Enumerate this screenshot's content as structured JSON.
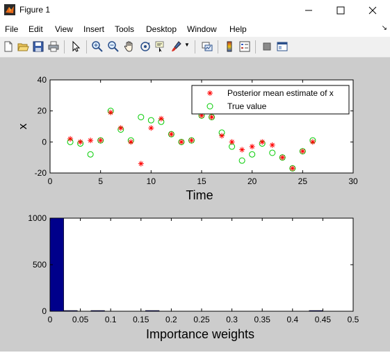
{
  "window": {
    "title": "Figure 1"
  },
  "menu": [
    "File",
    "Edit",
    "View",
    "Insert",
    "Tools",
    "Desktop",
    "Window",
    "Help"
  ],
  "toolbar": {
    "icons": [
      "new-figure-icon",
      "open-file-icon",
      "save-icon",
      "print-icon",
      "edit-plot-arrow-icon",
      "zoom-in-icon",
      "zoom-out-icon",
      "pan-hand-icon",
      "rotate-3d-icon",
      "data-cursor-icon",
      "brush-icon",
      "link-plot-icon",
      "colorbar-icon",
      "legend-icon",
      "hide-plot-tools-icon",
      "show-plot-tools-icon"
    ]
  },
  "plot1": {
    "ylabel": "x",
    "xlabel": "Time",
    "xlim": [
      0,
      30
    ],
    "ylim": [
      -20,
      40
    ],
    "xticks": [
      "0",
      "5",
      "10",
      "15",
      "20",
      "25",
      "30"
    ],
    "yticks": [
      "-20",
      "0",
      "20",
      "40"
    ],
    "legend": {
      "est_label": "Posterior mean estimate of x",
      "true_label": "True value",
      "placement": "top-right"
    }
  },
  "plot2": {
    "xlabel": "Importance weights",
    "xlim": [
      0,
      0.5
    ],
    "ylim": [
      0,
      1000
    ],
    "xticks": [
      "0",
      "0.05",
      "0.1",
      "0.15",
      "0.2",
      "0.25",
      "0.3",
      "0.35",
      "0.4",
      "0.45",
      "0.5"
    ],
    "yticks": [
      "0",
      "500",
      "1000"
    ]
  },
  "chart_data": [
    {
      "type": "scatter",
      "xlabel": "Time",
      "ylabel": "x",
      "xlim": [
        0,
        30
      ],
      "ylim": [
        -20,
        40
      ],
      "series": [
        {
          "name": "Posterior mean estimate of x",
          "color": "#ff0000",
          "marker": "*",
          "x": [
            2,
            3,
            4,
            5,
            6,
            7,
            8,
            9,
            10,
            11,
            12,
            13,
            14,
            15,
            16,
            17,
            18,
            19,
            20,
            21,
            22,
            23,
            24,
            25,
            26
          ],
          "y": [
            2,
            0,
            1,
            1,
            19,
            9,
            0,
            -14,
            9,
            15,
            5,
            0,
            1,
            17,
            16,
            4,
            0,
            -5,
            -3,
            0,
            -2,
            -10,
            -17,
            -6,
            0
          ]
        },
        {
          "name": "True value",
          "color": "#00cc00",
          "marker": "o",
          "x": [
            2,
            3,
            4,
            5,
            6,
            7,
            8,
            9,
            10,
            11,
            12,
            13,
            14,
            15,
            16,
            17,
            18,
            19,
            20,
            21,
            22,
            23,
            24,
            25,
            26
          ],
          "y": [
            0,
            -1,
            -8,
            1,
            20,
            8,
            1,
            16,
            14,
            13,
            5,
            0,
            1,
            17,
            16,
            6,
            -3,
            -12,
            -8,
            -1,
            -7,
            -10,
            -17,
            -6,
            1
          ]
        }
      ]
    },
    {
      "type": "bar",
      "xlabel": "Importance weights",
      "xlim": [
        0,
        0.5
      ],
      "ylim": [
        0,
        1000
      ],
      "color": "#00008b",
      "bins": [
        {
          "x0": 0.0,
          "x1": 0.0225,
          "count": 1000
        },
        {
          "x0": 0.0225,
          "x1": 0.045,
          "count": 3
        },
        {
          "x0": 0.0675,
          "x1": 0.09,
          "count": 4
        },
        {
          "x0": 0.1575,
          "x1": 0.18,
          "count": 3
        },
        {
          "x0": 0.4275,
          "x1": 0.45,
          "count": 3
        }
      ]
    }
  ]
}
